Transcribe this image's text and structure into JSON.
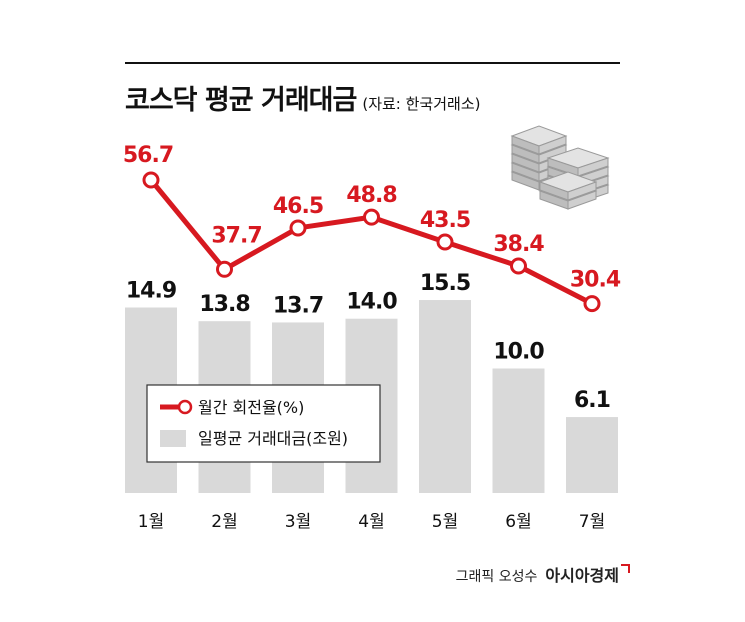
{
  "title": "코스닥 평균 거래대금",
  "source": "(자료: 한국거래소)",
  "credit": {
    "prefix": "그래픽 오성수",
    "brand": "아시아경제"
  },
  "colors": {
    "line": "#d71920",
    "bar": "#d9d9d9",
    "text": "#111111"
  },
  "icon": "money-stack-icon",
  "chart_data": {
    "type": "bar+line",
    "categories": [
      "1월",
      "2월",
      "3월",
      "4월",
      "5월",
      "6월",
      "7월"
    ],
    "series": [
      {
        "name": "일평균 거래대금(조원)",
        "type": "bar",
        "values": [
          14.9,
          13.8,
          13.7,
          14.0,
          15.5,
          10.0,
          6.1
        ]
      },
      {
        "name": "월간 회전율(%)",
        "type": "line",
        "values": [
          56.7,
          37.7,
          46.5,
          48.8,
          43.5,
          38.4,
          30.4
        ]
      }
    ],
    "bar_labels": [
      "14.9",
      "13.8",
      "13.7",
      "14.0",
      "15.5",
      "10.0",
      "6.1"
    ],
    "line_labels": [
      "56.7",
      "37.7",
      "46.5",
      "48.8",
      "43.5",
      "38.4",
      "30.4"
    ],
    "legend": {
      "position": "center-left",
      "entries": [
        "월간 회전율(%)",
        "일평균 거래대금(조원)"
      ]
    },
    "grid": false
  }
}
